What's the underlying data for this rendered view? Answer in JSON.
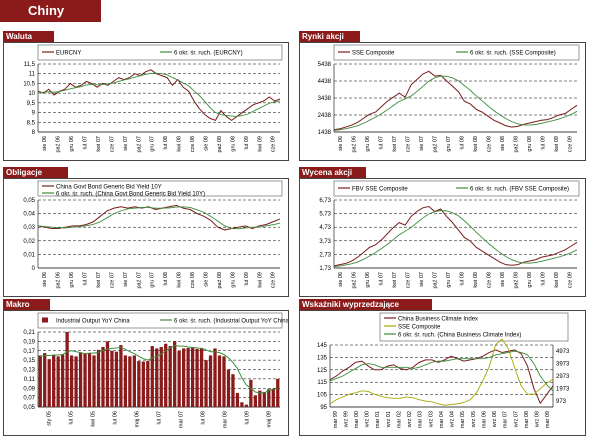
{
  "page": {
    "title": "Chiny"
  },
  "colors": {
    "dark_red": "#8b1a1a",
    "olive": "#a8a800",
    "maroon": "#7a1c1c",
    "green": "#3c8c3c",
    "grid": "#000000"
  },
  "chart_data": [
    {
      "id": "waluta",
      "header": "Waluta",
      "type": "line",
      "legend": [
        "EURCNY",
        "6 okr. śr. ruch. (EURCNY)"
      ],
      "yticks": [
        "11,5",
        "11",
        "10,5",
        "10",
        "9,5",
        "9",
        "8,5",
        "8"
      ],
      "ylim": [
        8,
        11.5
      ],
      "xticks": [
        "sie 06",
        "paź 06",
        "gru 06",
        "lut 07",
        "kwi 07",
        "cze 07",
        "sie 07",
        "paź 07",
        "gru 07",
        "lut 08",
        "kwi 08",
        "cze 08",
        "sie 08",
        "paź 08",
        "gru 08",
        "lut 09",
        "kwi 09",
        "cze 09"
      ],
      "series": [
        {
          "values": [
            10.1,
            10.0,
            10.2,
            9.9,
            10.1,
            10.2,
            10.5,
            10.3,
            10.4,
            10.6,
            10.5,
            10.3,
            10.5,
            10.4,
            10.6,
            10.8,
            10.7,
            10.8,
            11.0,
            10.9,
            11.1,
            11.2,
            11.0,
            10.9,
            10.8,
            10.4,
            10.7,
            10.3,
            10.1,
            9.6,
            9.2,
            8.9,
            8.7,
            8.6,
            9.1,
            8.8,
            8.6,
            8.8,
            9.0,
            9.2,
            9.4,
            9.5,
            9.6,
            9.8,
            9.6,
            9.7
          ]
        },
        {
          "values": [
            10.0,
            10.05,
            10.07,
            10.05,
            10.08,
            10.15,
            10.22,
            10.28,
            10.33,
            10.42,
            10.45,
            10.42,
            10.45,
            10.48,
            10.52,
            10.6,
            10.68,
            10.74,
            10.82,
            10.9,
            10.96,
            11.02,
            11.02,
            11.0,
            10.95,
            10.8,
            10.68,
            10.52,
            10.38,
            10.12,
            9.88,
            9.58,
            9.25,
            9.0,
            8.9,
            8.85,
            8.82,
            8.8,
            8.85,
            8.92,
            9.06,
            9.2,
            9.34,
            9.48,
            9.55,
            9.6
          ]
        }
      ]
    },
    {
      "id": "rynki",
      "header": "Rynki akcji",
      "type": "line",
      "legend": [
        "SSE Composite",
        "6 okr. śr. ruch. (SSE Composite)"
      ],
      "yticks": [
        "5438",
        "4438",
        "3438",
        "2438",
        "1438"
      ],
      "ylim": [
        1438,
        6438
      ],
      "xticks": [
        "sie 06",
        "paź 06",
        "gru 06",
        "lut 07",
        "kwi 07",
        "cze 07",
        "sie 07",
        "paź 07",
        "gru 07",
        "lut 08",
        "kwi 08",
        "cze 08",
        "sie 08",
        "paź 08",
        "gru 08",
        "lut 09",
        "kwi 09",
        "cze 09"
      ],
      "series": [
        {
          "values": [
            1600,
            1680,
            1800,
            1950,
            2150,
            2450,
            2750,
            2900,
            3300,
            3700,
            4000,
            4300,
            4000,
            4900,
            5300,
            5700,
            5900,
            5550,
            5600,
            5200,
            4800,
            4400,
            3700,
            3500,
            3100,
            2900,
            2600,
            2300,
            2100,
            1900,
            1800,
            1850,
            2000,
            2100,
            2200,
            2300,
            2350,
            2500,
            2700,
            2800,
            3100,
            3400
          ]
        },
        {
          "values": [
            1550,
            1600,
            1680,
            1780,
            1900,
            2080,
            2300,
            2520,
            2780,
            3060,
            3380,
            3680,
            3880,
            4080,
            4420,
            4790,
            5180,
            5420,
            5550,
            5530,
            5420,
            5200,
            4860,
            4500,
            4100,
            3720,
            3350,
            3000,
            2700,
            2420,
            2200,
            2040,
            1960,
            1950,
            1990,
            2080,
            2180,
            2280,
            2400,
            2550,
            2730,
            2960
          ]
        }
      ]
    },
    {
      "id": "obligacje",
      "header": "Obligacje",
      "type": "line",
      "legend": [
        "China Govt Bond Generic Bid Yield 10Y",
        "6 okr. śr. ruch. (China Govt Bond Generic Bid Yield 10Y)"
      ],
      "yticks": [
        "0,05",
        "0,04",
        "0,03",
        "0,02",
        "0,01",
        "0"
      ],
      "ylim": [
        0,
        0.05
      ],
      "xticks": [
        "sie 06",
        "paź 06",
        "gru 06",
        "lut 07",
        "kwi 07",
        "cze 07",
        "sie 07",
        "paź 07",
        "gru 07",
        "lut 08",
        "kwi 08",
        "cze 08",
        "sie 08",
        "paź 08",
        "gru 08",
        "lut 09",
        "kwi 09",
        "cze 09"
      ],
      "series": [
        {
          "values": [
            0.031,
            0.03,
            0.029,
            0.029,
            0.03,
            0.031,
            0.031,
            0.032,
            0.034,
            0.038,
            0.042,
            0.044,
            0.045,
            0.044,
            0.045,
            0.044,
            0.045,
            0.043,
            0.044,
            0.045,
            0.046,
            0.044,
            0.043,
            0.04,
            0.038,
            0.035,
            0.03,
            0.028,
            0.029,
            0.03,
            0.031,
            0.029,
            0.031,
            0.032,
            0.034,
            0.036
          ]
        },
        {
          "values": [
            0.031,
            0.0305,
            0.03,
            0.0295,
            0.0295,
            0.03,
            0.0305,
            0.031,
            0.032,
            0.034,
            0.037,
            0.04,
            0.042,
            0.0435,
            0.044,
            0.0445,
            0.0445,
            0.044,
            0.044,
            0.0442,
            0.0448,
            0.045,
            0.0445,
            0.0428,
            0.041,
            0.038,
            0.0345,
            0.031,
            0.029,
            0.0288,
            0.0295,
            0.03,
            0.03,
            0.031,
            0.0318,
            0.033
          ]
        }
      ]
    },
    {
      "id": "wycena",
      "header": "Wycena akcji",
      "type": "line",
      "legend": [
        "FBV SSE Composite",
        "6 okr. śr. ruch. (FBV SSE Composite)"
      ],
      "yticks": [
        "6,73",
        "5,73",
        "4,73",
        "3,73",
        "2,73",
        "1,73"
      ],
      "ylim": [
        1.73,
        7.23
      ],
      "xticks": [
        "sie 06",
        "paź 06",
        "gru 06",
        "lut 07",
        "kwi 07",
        "cze 07",
        "sie 07",
        "paź 07",
        "gru 07",
        "lut 08",
        "kwi 08",
        "cze 08",
        "sie 08",
        "paź 08",
        "gru 08",
        "lut 09",
        "kwi 09",
        "cze 09"
      ],
      "series": [
        {
          "values": [
            1.9,
            2.0,
            2.1,
            2.3,
            2.6,
            3.0,
            3.4,
            3.6,
            4.0,
            4.5,
            5.0,
            5.4,
            5.2,
            5.9,
            6.3,
            6.6,
            6.7,
            6.3,
            6.5,
            5.9,
            5.4,
            4.8,
            4.2,
            3.9,
            3.4,
            3.1,
            2.8,
            2.5,
            2.2,
            2.0,
            1.95,
            2.0,
            2.2,
            2.3,
            2.4,
            2.6,
            2.7,
            2.8,
            3.0,
            3.2,
            3.5,
            3.8
          ]
        },
        {
          "values": [
            1.85,
            1.9,
            1.98,
            2.08,
            2.22,
            2.43,
            2.7,
            2.98,
            3.3,
            3.64,
            4.02,
            4.42,
            4.7,
            5.0,
            5.4,
            5.78,
            6.1,
            6.28,
            6.38,
            6.35,
            6.2,
            5.95,
            5.55,
            5.1,
            4.63,
            4.18,
            3.75,
            3.35,
            2.98,
            2.65,
            2.4,
            2.22,
            2.14,
            2.12,
            2.17,
            2.27,
            2.38,
            2.5,
            2.63,
            2.78,
            2.97,
            3.2
          ]
        }
      ]
    },
    {
      "id": "makro",
      "header": "Makro",
      "type": "bar",
      "legend": [
        "Industrial Output YoY China",
        "6 okr. śr. ruch. (Industrial Output YoY China)"
      ],
      "yticks": [
        "0,21",
        "0,19",
        "0,17",
        "0,15",
        "0,13",
        "0,11",
        "0,09",
        "0,07",
        "0,05"
      ],
      "ylim": [
        0.05,
        0.21
      ],
      "xticks": [
        "sty 05",
        "lut 05",
        "kwi 05",
        "lut 06",
        "maj 06",
        "lut 07",
        "mar 07",
        "lut 08",
        "mar 08",
        "lut 09",
        "maj 09"
      ],
      "series": [
        {
          "values": [
            0.16,
            0.165,
            0.152,
            0.16,
            0.158,
            0.162,
            0.21,
            0.16,
            0.158,
            0.166,
            0.163,
            0.165,
            0.16,
            0.172,
            0.178,
            0.19,
            0.17,
            0.168,
            0.182,
            0.16,
            0.158,
            0.16,
            0.148,
            0.147,
            0.148,
            0.18,
            0.175,
            0.178,
            0.185,
            0.18,
            0.19,
            0.17,
            0.175,
            0.176,
            0.178,
            0.174,
            0.176,
            0.15,
            0.16,
            0.175,
            0.16,
            0.158,
            0.13,
            0.12,
            0.08,
            0.06,
            0.055,
            0.108,
            0.075,
            0.085,
            0.082,
            0.088,
            0.089,
            0.11
          ]
        },
        {
          "values": [
            0.158,
            0.16,
            0.16,
            0.161,
            0.161,
            0.162,
            0.168,
            0.17,
            0.168,
            0.166,
            0.164,
            0.165,
            0.165,
            0.167,
            0.17,
            0.174,
            0.175,
            0.176,
            0.177,
            0.173,
            0.168,
            0.164,
            0.158,
            0.153,
            0.15,
            0.155,
            0.158,
            0.163,
            0.17,
            0.176,
            0.181,
            0.18,
            0.18,
            0.178,
            0.177,
            0.176,
            0.175,
            0.172,
            0.168,
            0.168,
            0.166,
            0.162,
            0.155,
            0.145,
            0.132,
            0.112,
            0.097,
            0.09,
            0.082,
            0.08,
            0.08,
            0.085,
            0.088,
            0.09
          ]
        }
      ]
    },
    {
      "id": "wskazniki",
      "header": "Wskaźniki wyprzedzające",
      "type": "line",
      "legend": [
        "China Business Climate Index",
        "SSE Composite",
        "6 okr. śr. ruch. (China Business Climate Index)"
      ],
      "yticks_left": [
        "145",
        "135",
        "125",
        "115",
        "105",
        "95"
      ],
      "ylim_left": [
        95,
        145
      ],
      "yticks_right": [
        "4973",
        "3973",
        "2973",
        "1973",
        "973"
      ],
      "ylim_right": [
        973,
        5473
      ],
      "xticks": [
        "mar 99",
        "wrz 99",
        "mar 00",
        "wrz 00",
        "mar 01",
        "wrz 01",
        "mar 02",
        "wrz 02",
        "mar 03",
        "wrz 03",
        "mar 04",
        "wrz 04",
        "mar 05",
        "wrz 05",
        "mar 06",
        "wrz 06",
        "mar 07",
        "wrz 07",
        "mar 08",
        "wrz 08",
        "mar 09"
      ],
      "series": [
        {
          "values": [
            117,
            120,
            124,
            127,
            131,
            132,
            128,
            125,
            125,
            128,
            129,
            126,
            125,
            127,
            131,
            133,
            133,
            131,
            133,
            136,
            134,
            132,
            133,
            134,
            136,
            139,
            141,
            139,
            140,
            141,
            138,
            128,
            110,
            98,
            105,
            112
          ]
        },
        {
          "values": [
            1200,
            1500,
            1700,
            1900,
            2000,
            2150,
            2100,
            1900,
            1750,
            1650,
            1600,
            1600,
            1700,
            1650,
            1500,
            1400,
            1350,
            1200,
            1100,
            1150,
            1200,
            1300,
            1500,
            2000,
            2900,
            3900,
            5500,
            5900,
            5200,
            3800,
            2500,
            1900,
            1900,
            2300,
            2700,
            3000
          ]
        },
        {
          "values": [
            116,
            118,
            120,
            123,
            126,
            129,
            130,
            129,
            127,
            127,
            127,
            127,
            127,
            126,
            127,
            129,
            131,
            132,
            132,
            133,
            134,
            134,
            134,
            134,
            134,
            135,
            137,
            138,
            139,
            140,
            139,
            137,
            130,
            120,
            113,
            108
          ]
        }
      ]
    }
  ]
}
